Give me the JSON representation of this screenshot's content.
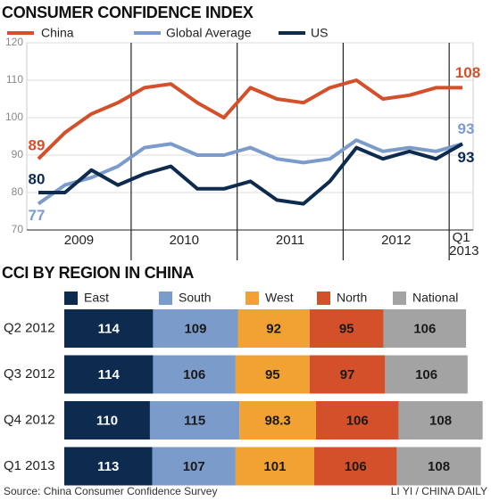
{
  "chart_data": [
    {
      "type": "line",
      "title": "CONSUMER CONFIDENCE INDEX",
      "categories": [
        null,
        null,
        null,
        null,
        null,
        null,
        null,
        null,
        null,
        null,
        null,
        null,
        null,
        null,
        null,
        null,
        null
      ],
      "x_groups": [
        "2009",
        "2010",
        "2011",
        "2012",
        "Q1 2013"
      ],
      "series": [
        {
          "name": "China",
          "color": "#d4502a",
          "values": [
            89,
            96,
            101,
            104,
            108,
            109,
            104,
            100,
            108,
            105,
            104,
            108,
            110,
            105,
            106,
            108,
            108
          ]
        },
        {
          "name": "Global Average",
          "color": "#7b9bcb",
          "values": [
            77,
            82,
            84,
            87,
            92,
            93,
            90,
            90,
            92,
            89,
            88,
            89,
            94,
            91,
            92,
            91,
            93
          ]
        },
        {
          "name": "US",
          "color": "#0d2a4f",
          "values": [
            80,
            80,
            86,
            82,
            85,
            87,
            81,
            81,
            83,
            78,
            77,
            83,
            92,
            89,
            91,
            89,
            93
          ]
        }
      ],
      "ylim": [
        70,
        120
      ],
      "yticks": [
        70,
        80,
        90,
        100,
        110,
        120
      ],
      "grid": true
    },
    {
      "type": "stacked_bar_h",
      "title": "CCI BY REGION IN CHINA",
      "categories": [
        "Q2 2012",
        "Q3 2012",
        "Q4 2012",
        "Q1 2013"
      ],
      "series": [
        {
          "name": "East",
          "color": "#0d2a4f",
          "values": [
            114,
            114,
            110,
            113
          ]
        },
        {
          "name": "South",
          "color": "#7b9bcb",
          "values": [
            109,
            106,
            115,
            107
          ]
        },
        {
          "name": "West",
          "color": "#f2a233",
          "values": [
            92,
            95,
            98.3,
            101
          ]
        },
        {
          "name": "North",
          "color": "#d4502a",
          "values": [
            95,
            97,
            106,
            106
          ]
        },
        {
          "name": "National",
          "color": "#a3a3a3",
          "values": [
            106,
            106,
            108,
            108
          ]
        }
      ]
    }
  ],
  "footer": {
    "source": "Source: China Consumer Confidence Survey",
    "credit": "LI YI / CHINA DAILY"
  }
}
